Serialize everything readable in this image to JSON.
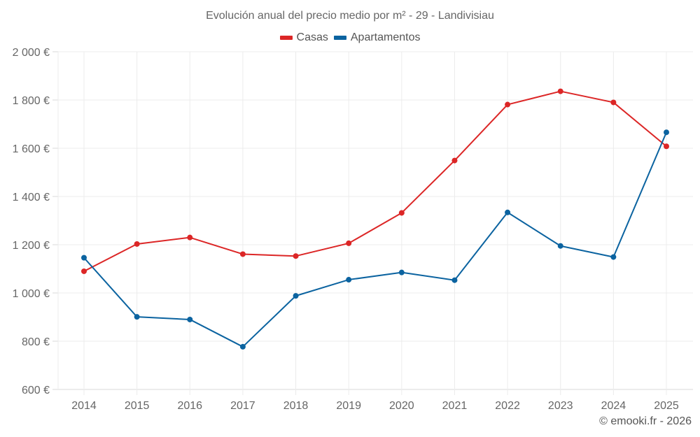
{
  "chart_data": {
    "type": "line",
    "title": "Evolución anual del precio medio por m² - 29 - Landivisiau",
    "xlabel": "",
    "ylabel": "",
    "x": [
      "2014",
      "2015",
      "2016",
      "2017",
      "2018",
      "2019",
      "2020",
      "2021",
      "2022",
      "2023",
      "2024",
      "2025"
    ],
    "ylim": [
      600,
      2000
    ],
    "yticks": [
      600,
      800,
      1000,
      1200,
      1400,
      1600,
      1800,
      2000
    ],
    "ytick_labels": [
      "600 €",
      "800 €",
      "1 000 €",
      "1 200 €",
      "1 400 €",
      "1 600 €",
      "1 800 €",
      "2 000 €"
    ],
    "grid": true,
    "legend_position": "top-center",
    "series": [
      {
        "name": "Casas",
        "color": "#dc2626",
        "values": [
          1090,
          1203,
          1230,
          1161,
          1153,
          1206,
          1332,
          1549,
          1781,
          1836,
          1790,
          1608
        ]
      },
      {
        "name": "Apartamentos",
        "color": "#0b63a0",
        "values": [
          1146,
          901,
          890,
          777,
          988,
          1055,
          1085,
          1053,
          1334,
          1195,
          1149,
          1666
        ]
      }
    ]
  },
  "credit": "© emooki.fr - 2026"
}
